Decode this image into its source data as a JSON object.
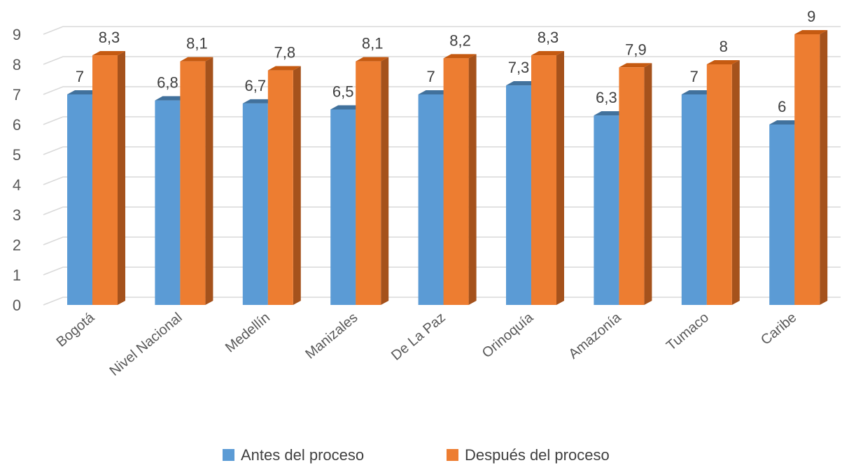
{
  "chart_data": {
    "type": "bar",
    "categories": [
      "Bogotá",
      "Nivel Nacional",
      "Medellín",
      "Manizales",
      "De La Paz",
      "Orinoquía",
      "Amazonía",
      "Tumaco",
      "Caribe"
    ],
    "series": [
      {
        "name": "Antes del proceso",
        "values": [
          7,
          6.8,
          6.7,
          6.5,
          7,
          7.3,
          6.3,
          7,
          6
        ],
        "labels": [
          "7",
          "6,8",
          "6,7",
          "6,5",
          "7",
          "7,3",
          "6,3",
          "7",
          "6"
        ],
        "color": "#5B9BD5",
        "top_color": "#41719C"
      },
      {
        "name": "Después del proceso",
        "values": [
          8.3,
          8.1,
          7.8,
          8.1,
          8.2,
          8.3,
          7.9,
          8,
          9
        ],
        "labels": [
          "8,3",
          "8,1",
          "7,8",
          "8,1",
          "8,2",
          "8,3",
          "7,9",
          "8",
          "9"
        ],
        "color": "#ED7D31",
        "side_color": "#A5521C"
      }
    ],
    "y_ticks": [
      "0",
      "1",
      "2",
      "3",
      "4",
      "5",
      "6",
      "7",
      "8",
      "9"
    ],
    "ylim": [
      0,
      9
    ],
    "grid": true,
    "legend_position": "bottom"
  }
}
